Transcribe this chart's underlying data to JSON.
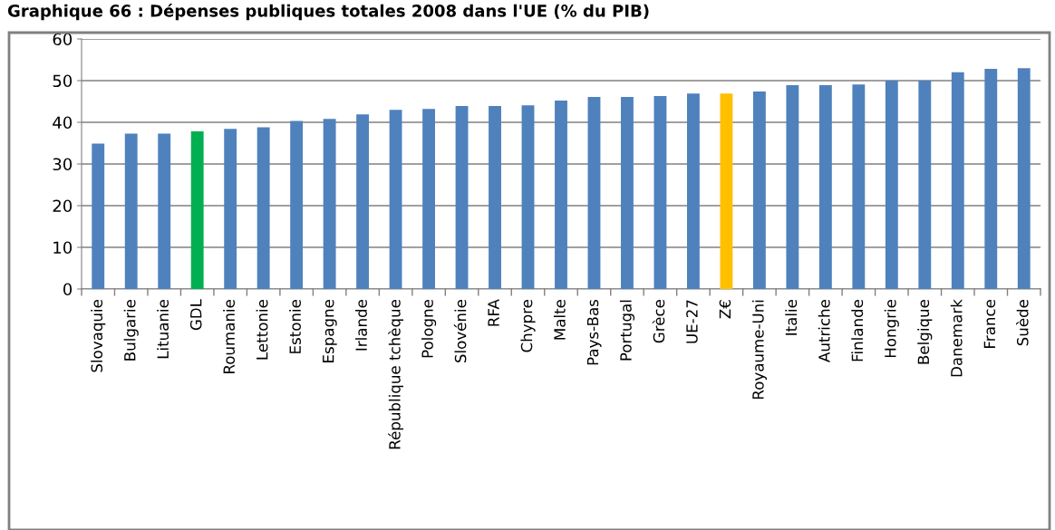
{
  "chart_data": {
    "type": "bar",
    "title": "Graphique 66 : Dépenses publiques totales 2008 dans l'UE (% du PIB)",
    "categories": [
      "Slovaquie",
      "Bulgarie",
      "Lituanie",
      "GDL",
      "Roumanie",
      "Lettonie",
      "Estonie",
      "Espagne",
      "Irlande",
      "République tchèque",
      "Pologne",
      "Slovénie",
      "RFA",
      "Chypre",
      "Malte",
      "Pays-Bas",
      "Portugal",
      "Grèce",
      "UE-27",
      "Z€",
      "Royaume-Uni",
      "Italie",
      "Autriche",
      "Finlande",
      "Hongrie",
      "Belgique",
      "Danemark",
      "France",
      "Suède"
    ],
    "values": [
      34.9,
      37.3,
      37.3,
      37.8,
      38.4,
      38.8,
      40.3,
      40.8,
      41.9,
      43.0,
      43.2,
      43.9,
      43.9,
      44.1,
      45.2,
      46.1,
      46.1,
      46.3,
      46.9,
      46.9,
      47.4,
      48.9,
      48.9,
      49.1,
      50.0,
      50.0,
      52.0,
      52.8,
      53.0
    ],
    "colors": [
      "#4f81bd",
      "#4f81bd",
      "#4f81bd",
      "#00b050",
      "#4f81bd",
      "#4f81bd",
      "#4f81bd",
      "#4f81bd",
      "#4f81bd",
      "#4f81bd",
      "#4f81bd",
      "#4f81bd",
      "#4f81bd",
      "#4f81bd",
      "#4f81bd",
      "#4f81bd",
      "#4f81bd",
      "#4f81bd",
      "#4f81bd",
      "#ffc000",
      "#4f81bd",
      "#4f81bd",
      "#4f81bd",
      "#4f81bd",
      "#4f81bd",
      "#4f81bd",
      "#4f81bd",
      "#4f81bd",
      "#4f81bd"
    ],
    "ylim": [
      0,
      60
    ],
    "yticks": [
      0,
      10,
      20,
      30,
      40,
      50,
      60
    ],
    "grid": "y",
    "legend": false
  }
}
